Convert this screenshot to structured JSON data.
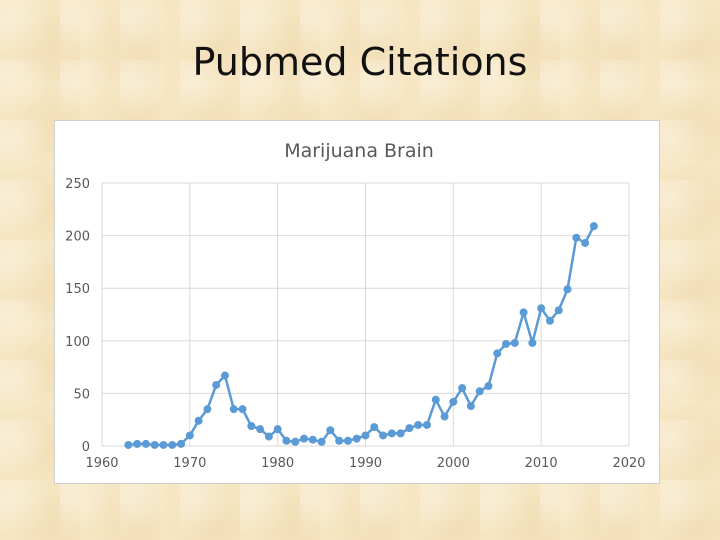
{
  "slide": {
    "title": "Pubmed Citations"
  },
  "chart_data": {
    "type": "line",
    "title": "Marijuana Brain",
    "xlabel": "",
    "ylabel": "",
    "xlim": [
      1960,
      2020
    ],
    "ylim": [
      0,
      250
    ],
    "xticks": [
      1960,
      1970,
      1980,
      1990,
      2000,
      2010,
      2020
    ],
    "yticks": [
      0,
      50,
      100,
      150,
      200,
      250
    ],
    "grid": "vertical and horizontal",
    "markers": true,
    "line_color": "#5b9bd5",
    "series": [
      {
        "name": "",
        "x": [
          1963,
          1964,
          1965,
          1966,
          1967,
          1968,
          1969,
          1970,
          1971,
          1972,
          1973,
          1974,
          1975,
          1976,
          1977,
          1978,
          1979,
          1980,
          1981,
          1982,
          1983,
          1984,
          1985,
          1986,
          1987,
          1988,
          1989,
          1990,
          1991,
          1992,
          1993,
          1994,
          1995,
          1996,
          1997,
          1998,
          1999,
          2000,
          2001,
          2002,
          2003,
          2004,
          2005,
          2006,
          2007,
          2008,
          2009,
          2010,
          2011,
          2012,
          2013,
          2014,
          2015,
          2016
        ],
        "y": [
          1,
          2,
          2,
          1,
          1,
          1,
          2,
          10,
          24,
          35,
          58,
          67,
          35,
          35,
          19,
          16,
          9,
          16,
          5,
          4,
          7,
          6,
          4,
          15,
          5,
          5,
          7,
          10,
          18,
          10,
          12,
          12,
          17,
          20,
          20,
          44,
          28,
          42,
          55,
          38,
          52,
          57,
          88,
          97,
          98,
          127,
          98,
          131,
          119,
          129,
          149,
          198,
          193,
          209
        ]
      }
    ]
  }
}
